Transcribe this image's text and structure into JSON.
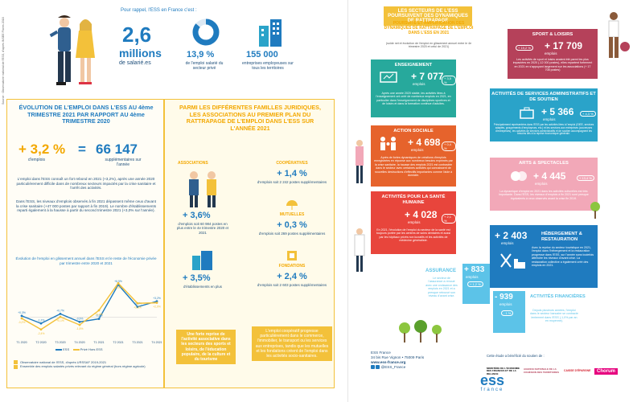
{
  "left": {
    "source_vertical": "Source : Observatoire national de l'ESS, d'après INSEE Flores 2018",
    "intro": "Pour rappel, l'ESS en France c'est :",
    "stats": [
      {
        "value": "2,6",
        "unit": "millions",
        "sub": "de salarié.es"
      },
      {
        "value": "13,9 %",
        "sub": "de l'emploi salarié du secteur privé"
      },
      {
        "value": "155 000",
        "sub": "entreprises employeuses sur tous les territoires"
      }
    ],
    "evolution": {
      "title": "ÉVOLUTION DE L'EMPLOI DANS L'ESS AU 4ème TRIMESTRE 2021 PAR RAPPORT AU 4ème TRIMESTRE 2020",
      "pct": "+ 3,2 %",
      "pct_unit": "d'emplois",
      "equals": "=",
      "count": "66 147",
      "count_unit": "supplémentaires sur l'année",
      "para1": "L'emploi dans l'ESS connaît un fort rebond en 2021 (+3,2%), après une année 2020 particulièrement difficile dans de nombreux secteurs impactés par la crise sanitaire et l'arrêt des activités.",
      "para2": "Dans l'ESS, les niveaux d'emplois observés à fin 2021 dépassent même ceux d'avant la crise sanitaire (+47 000 postes par rapport à fin 2019). Le nombre d'établissements reparti également à la hausse à partir du second trimestre 2021 (+3,0% sur l'année).",
      "chart_caption": "Évolution de l'emploi en glissement annuel dans l'ESS et le reste de l'économie privée par trimestre entre 2020 et 2021",
      "legend": [
        "ESS",
        "Privé Hors ESS"
      ],
      "notes": [
        "Observatoire national de l'ESS, d'après URSSAF 2019-2021",
        "Ensemble des emplois salariés privés relevant du régime général (hors régime agricole)"
      ]
    },
    "families": {
      "title": "PARMI LES DIFFÉRENTES FAMILLES JURIDIQUES, LES ASSOCIATIONS AU PREMIER PLAN DU RATTRAPAGE DE L'EMPLOI DANS L'ESS SUR L'ANNÉE 2021",
      "associations": {
        "label": "ASSOCIATIONS",
        "pct": "+ 3,6%",
        "desc": "d'emplois soit 60 984 postes en plus entre le 4e trimestre 2020 et 2021",
        "pct2": "+ 3,5%",
        "desc2": "d'établissements en plus"
      },
      "cooperatives": {
        "label": "COOPÉRATIVES",
        "pct": "+ 1,4 %",
        "desc": "d'emplois soit 2 242 postes supplémentaires"
      },
      "mutuelles": {
        "label": "MUTUELLES",
        "pct": "+ 0,3 %",
        "desc": "d'emplois soit 269 postes supplémentaires"
      },
      "fondations": {
        "label": "FONDATIONS",
        "pct": "+ 2,4 %",
        "desc": "d'emplois soit 2 603 postes supplémentaires"
      },
      "highlight": "Une forte reprise de l'activité associative dans les secteurs des sports et loisirs, de l'éducation populaire, de la culture et du tourisme",
      "coop_text": "L'emploi coopératif progresse particulièrement dans le commerce, l'immobilier, le transport ou les services aux entreprises, tandis que les mutuelles et les fondations créent de l'emploi dans les activités socio-sanitaires."
    }
  },
  "chart_data": {
    "type": "line",
    "categories": [
      "T1 2020",
      "T2 2020",
      "T3 2020",
      "T4 2020",
      "T1 2021",
      "T2 2021",
      "T3 2021",
      "T4 2021"
    ],
    "series": [
      {
        "name": "ESS",
        "values": [
          0.3,
          -1.2,
          0.7,
          -0.9,
          -0.3,
          6.5,
          2.1,
          3.2
        ]
      },
      {
        "name": "Privé Hors ESS",
        "values": [
          -0.2,
          -2.4,
          0.1,
          -1.5,
          1.4,
          6.8,
          2.8,
          2.9
        ]
      }
    ],
    "colors": [
      "#1f7bbf",
      "#f3c13a"
    ]
  },
  "right": {
    "title": "LES SECTEURS DE L'ESS POURSUIVENT DES DYNAMIQUES DE RATTRAPAGE",
    "subtitle": "POURSUITE ET AMPLIFICATION DES DYNAMIQUES DE RATTRAPAGE DE L'EMPLOI DANS L'ESS EN 2021",
    "note": "(solde net et évolution de l'emploi en glissement annuel entre le 4e trimestre 2020 et celui de 2021)",
    "sectors": [
      {
        "name": "SPORT & LOISIRS",
        "pct": "+ 19,2 %",
        "value": "+ 17 709",
        "unit": "emplois",
        "color": "#b5415a",
        "desc": "Les activités de sport et loisirs avaient été parmi les plus impactées en 2020 (-12 000 postes), elles repartent fortement en 2021 en s'appuyant largement sur les associations (+ 17 708 postes)"
      },
      {
        "name": "ENSEIGNEMENT",
        "pct": "+ 3,5 %",
        "value": "+ 7 077",
        "unit": "emplois",
        "color": "#27a99c",
        "desc": "Après une année 2020 stable, les activités liées à l'enseignement ont créé de nombreux emplois en 2021, en particulier dans l'enseignement de disciplines sportives et de loisirs et dans la formation continue d'adultes."
      },
      {
        "name": "ACTIVITÉS DE SERVICES ADMINISTRATIFS ET DE SOUTIEN",
        "pct": "+ 4,3 %",
        "value": "+ 5 366",
        "unit": "emplois",
        "color": "#2aa3c9",
        "desc": "Principalement représentées dans l'ESS par les activités liées à l'emploi (GIEE, services adaptés, groupements d'employeurs, etc.) et les services aux entreprises (couveuses d'entreprises), les activités de services administratifs et de soutien accompagnent les besoins liés à la reprise économique générale."
      },
      {
        "name": "ACTION SOCIALE",
        "pct": "+ 0,4 %",
        "value": "+ 4 698",
        "unit": "emplois",
        "color": "#e6632c",
        "desc": "Après de fortes dynamiques de créations d'emplois enregistrées en réponse aux nombreux besoins exprimés par la crise sanitaire, la hausse des emplois 2021 est contrastée dans le secteur avec certaines activités qui connaissent de nouvelles destructions d'effectifs importantes comme l'aide à domicile."
      },
      {
        "name": "ARTS & SPECTACLES",
        "pct": "+ 13,4 %",
        "value": "+ 4 445",
        "unit": "emplois",
        "color": "#f2a8b8",
        "desc": "La dynamique d'emploi en 2021 dans les activités culturelles est très importante. Dans l'ESS, les niveaux d'emplois à fin 2021 sont presque équivalents à ceux observés avant la crise fin 2019."
      },
      {
        "name": "ACTIVITÉS POUR LA SANTÉ HUMAINE",
        "pct": "+ 2,1 %",
        "value": "+ 4 028",
        "unit": "emplois",
        "color": "#e8453c",
        "desc": "En 2021, l'évolution de l'emploi du secteur de la santé est toujours portée par les centres de soins dentaires et aussi par les hôpitaux privés non lucratifs et les activités de médecine généraliste."
      },
      {
        "name": "HÉBERGEMENT & RESTAURATION",
        "pct": "",
        "value": "+ 2 403",
        "unit": "emplois",
        "color": "#1f7bbf",
        "desc": "Avec la reprise du secteur touristique en 2021, l'emploi dans l'hébergement et la restauration progresse dans l'ESS, sur l'année sans toutefois atteindre les niveaux d'avant crise. La restauration collective a également créé des emplois en 2021."
      },
      {
        "name": "ASSURANCE",
        "pct": "+ 1,2 %",
        "value": "+ 833",
        "unit": "emplois",
        "color": "#5cc3e8",
        "desc": "Le secteur de l'assurance a renoué avec une croissance des emplois en 2021 et a presque retrouvé son niveau d'avant crise."
      },
      {
        "name": "ACTIVITÉS FINANCIÈRES",
        "pct": "- 1 %",
        "value": "- 939",
        "unit": "emplois",
        "color": "#5cc3e8",
        "desc": "Depuis plusieurs années, l'emploi dans le secteur bancaire se contracte lentement dans l'ESS (-1,0% par an en moyenne)."
      }
    ],
    "footer_org": "ESS France",
    "footer_address": "34 bis Rue Vignon • 75009 Paris",
    "footer_web": "www.ess-france.org",
    "footer_social": "@ESS_France",
    "sponsor_text": "Cette étude a bénéficié du soutien de :",
    "sponsors": [
      "MINISTÈRE DE L'ÉCONOMIE DES FINANCES ET DE LA RELANCE",
      "AGENCE NATIONALE DE LA COHÉSION DES TERRITOIRES",
      "CAISSE D'ÉPARGNE",
      "Chorum"
    ],
    "logo": "ess",
    "logo_sub": "france"
  }
}
